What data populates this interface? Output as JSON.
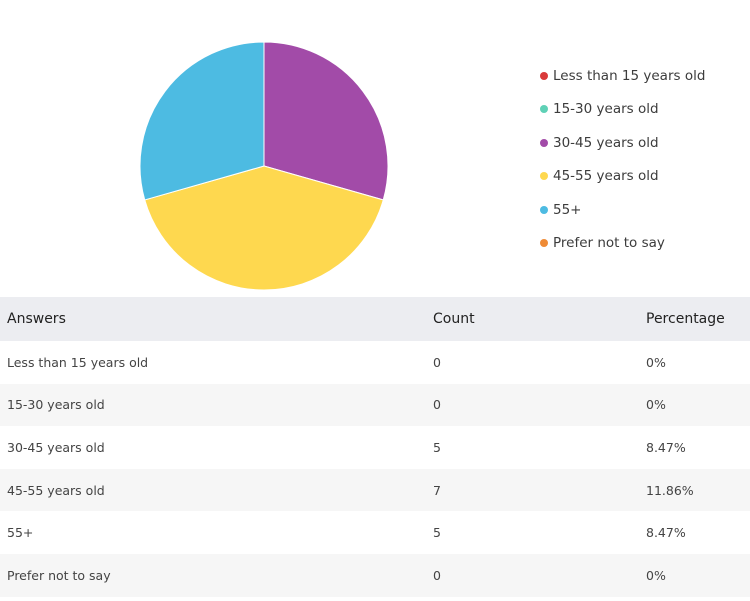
{
  "chart_data": {
    "type": "pie",
    "categories": [
      "Less than 15 years old",
      "15-30 years old",
      "30-45 years old",
      "45-55 years old",
      "55+",
      "Prefer not to say"
    ],
    "values": [
      0,
      0,
      5,
      7,
      5,
      0
    ],
    "colors": [
      "#d93a3a",
      "#5fd1b6",
      "#a24ba8",
      "#fed84f",
      "#4dbbe2",
      "#ef8b36"
    ],
    "legend_position": "right",
    "table": {
      "headers": [
        "Answers",
        "Count",
        "Percentage"
      ],
      "rows": [
        [
          "Less than 15 years old",
          "0",
          "0%"
        ],
        [
          "15-30 years old",
          "0",
          "0%"
        ],
        [
          "30-45 years old",
          "5",
          "8.47%"
        ],
        [
          "45-55 years old",
          "7",
          "11.86%"
        ],
        [
          "55+",
          "5",
          "8.47%"
        ],
        [
          "Prefer not to say",
          "0",
          "0%"
        ]
      ]
    }
  }
}
